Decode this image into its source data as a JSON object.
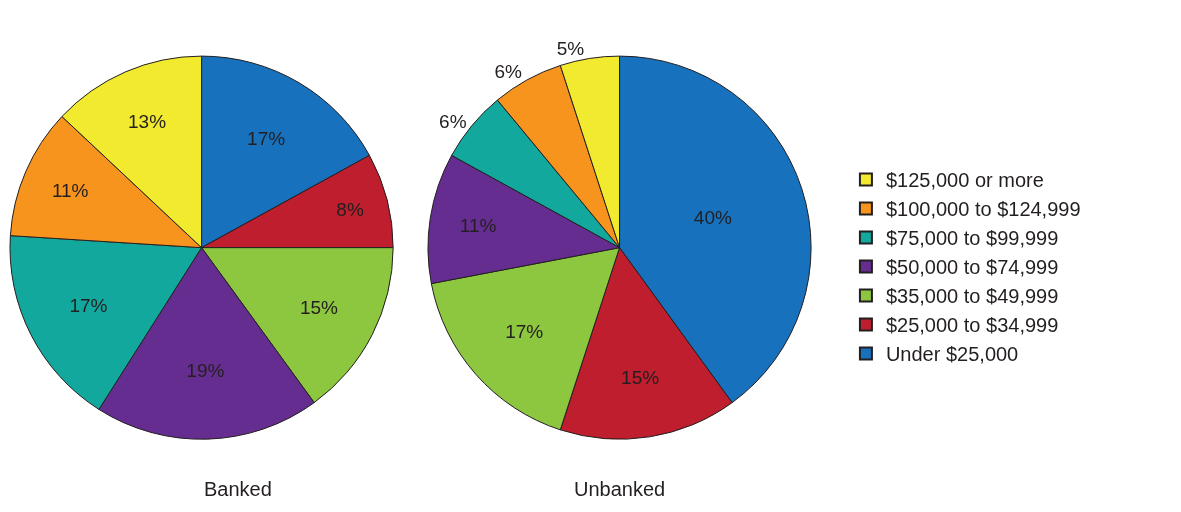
{
  "chart_data": [
    {
      "type": "pie",
      "title": "Banked",
      "categories": [
        "Under $25,000",
        "$25,000 to $34,999",
        "$35,000 to $49,999",
        "$50,000 to $74,999",
        "$75,000 to $99,999",
        "$100,000 to $124,999",
        "$125,000 or more"
      ],
      "values": [
        17,
        8,
        15,
        19,
        17,
        11,
        13
      ],
      "value_labels": [
        "17%",
        "8%",
        "15%",
        "19%",
        "17%",
        "11%",
        "13%"
      ],
      "colors": [
        "#1771bd",
        "#be1e2d",
        "#8dc63f",
        "#662d91",
        "#13a89e",
        "#f7941d",
        "#f2ea2f"
      ],
      "legend": "right"
    },
    {
      "type": "pie",
      "title": "Unbanked",
      "categories": [
        null,
        null,
        null,
        null,
        null,
        null,
        null
      ],
      "values": [
        40,
        15,
        17,
        11,
        6,
        6,
        5
      ],
      "value_labels": [
        "40%",
        "15%",
        "17%",
        "11%",
        "6%",
        "6%",
        "5%"
      ],
      "colors": [
        "#1771bd",
        "#be1e2d",
        "#8dc63f",
        "#662d91",
        "#13a89e",
        "#f7941d",
        "#f2ea2f"
      ]
    }
  ]
}
